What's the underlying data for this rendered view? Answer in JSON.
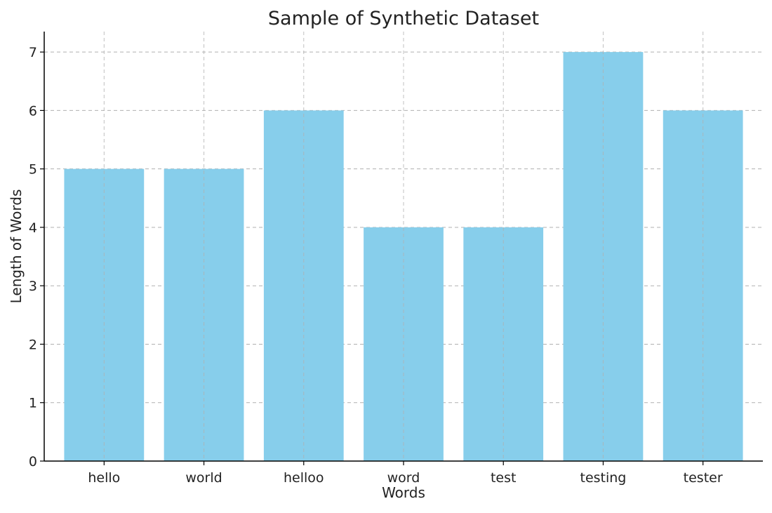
{
  "chart_data": {
    "type": "bar",
    "title": "Sample of Synthetic Dataset",
    "xlabel": "Words",
    "ylabel": "Length of Words",
    "categories": [
      "hello",
      "world",
      "helloo",
      "word",
      "test",
      "testing",
      "tester"
    ],
    "values": [
      5,
      5,
      6,
      4,
      4,
      7,
      6
    ],
    "ylim": [
      0,
      7.35
    ],
    "yticks": [
      0,
      1,
      2,
      3,
      4,
      5,
      6,
      7
    ],
    "grid": true,
    "bar_color": "#87ceeb"
  }
}
